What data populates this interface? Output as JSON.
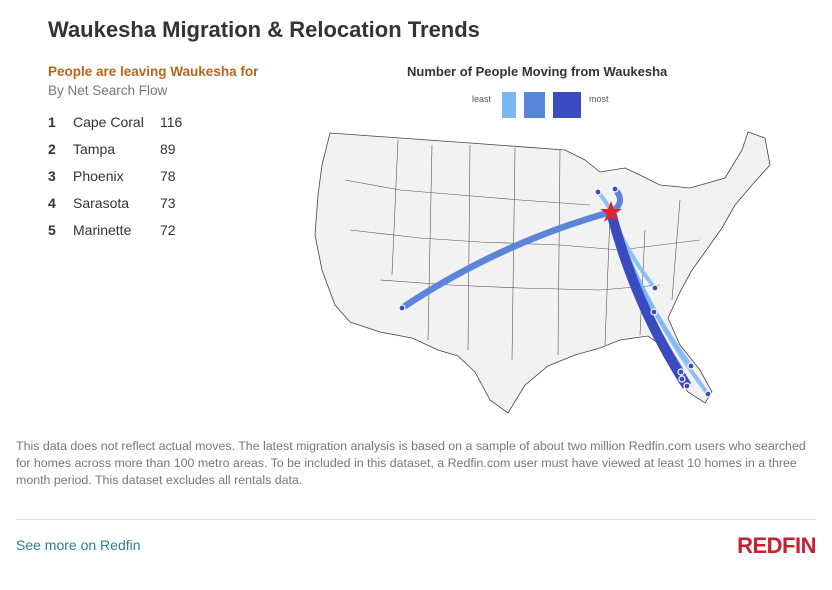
{
  "title": "Waukesha Migration & Relocation Trends",
  "list": {
    "heading": "People are leaving Waukesha for",
    "subheading": "By Net Search Flow",
    "items": [
      {
        "rank": "1",
        "city": "Cape Coral",
        "value": "116"
      },
      {
        "rank": "2",
        "city": "Tampa",
        "value": "89"
      },
      {
        "rank": "3",
        "city": "Phoenix",
        "value": "78"
      },
      {
        "rank": "4",
        "city": "Sarasota",
        "value": "73"
      },
      {
        "rank": "5",
        "city": "Marinette",
        "value": "72"
      }
    ]
  },
  "chart_data": {
    "type": "flow-map",
    "title": "Number of People Moving from Waukesha",
    "origin": "Waukesha",
    "legend": {
      "least_label": "least",
      "most_label": "most",
      "colors": [
        "#7ab8f5",
        "#5b85d9",
        "#3a4bc2"
      ]
    },
    "destinations": [
      {
        "city": "Cape Coral",
        "value": 116
      },
      {
        "city": "Tampa",
        "value": 89
      },
      {
        "city": "Phoenix",
        "value": 78
      },
      {
        "city": "Sarasota",
        "value": 73
      },
      {
        "city": "Marinette",
        "value": 72
      }
    ],
    "origin_color": "#e8202a"
  },
  "footer": {
    "note": "This data does not reflect actual moves. The latest migration analysis is based on a sample of about two million Redfin.com users who searched for homes across more than 100 metro areas. To be included in this dataset, a Redfin.com user must have viewed at least 10 homes in a three month period. This dataset excludes all rentals data.",
    "link": "See more on Redfin",
    "logo": "REDFIN"
  }
}
